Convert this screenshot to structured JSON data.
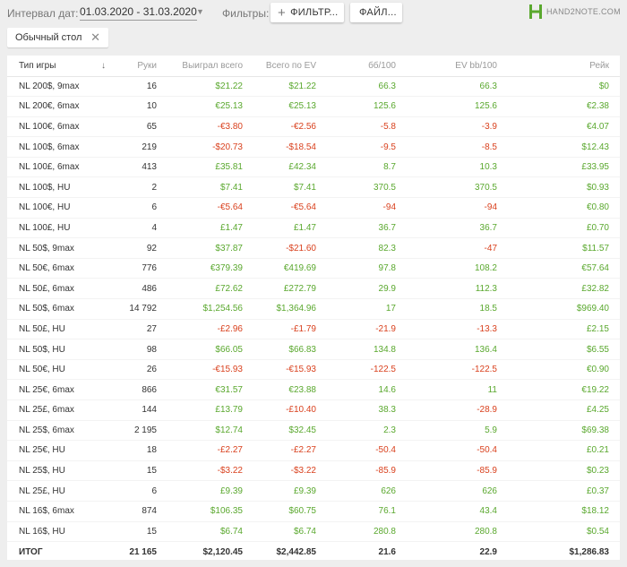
{
  "toolbar": {
    "interval_label": "Интервал дат:",
    "date_range": "01.03.2020 - 31.03.2020",
    "filters_label": "Фильтры:",
    "filter_button": "ФИЛЬТР...",
    "file_button": "ФАЙЛ...",
    "logo_text": "HAND2NOTE.COM"
  },
  "chip": {
    "label": "Обычный стол"
  },
  "table": {
    "headers": {
      "game_type": "Тип игры",
      "hands": "Руки",
      "won": "Выиграл всего",
      "ev": "Всего по EV",
      "bb100": "бб/100",
      "ev_bb100": "EV bb/100",
      "rake": "Рейк"
    },
    "rows": [
      {
        "game": "NL 200$, 9max",
        "hands": "16",
        "won": "$21.22",
        "ev": "$21.22",
        "bb": "66.3",
        "evbb": "66.3",
        "rake": "$0"
      },
      {
        "game": "NL 200€, 6max",
        "hands": "10",
        "won": "€25.13",
        "ev": "€25.13",
        "bb": "125.6",
        "evbb": "125.6",
        "rake": "€2.38"
      },
      {
        "game": "NL 100€, 6max",
        "hands": "65",
        "won": "-€3.80",
        "ev": "-€2.56",
        "bb": "-5.8",
        "evbb": "-3.9",
        "rake": "€4.07"
      },
      {
        "game": "NL 100$, 6max",
        "hands": "219",
        "won": "-$20.73",
        "ev": "-$18.54",
        "bb": "-9.5",
        "evbb": "-8.5",
        "rake": "$12.43"
      },
      {
        "game": "NL 100£, 6max",
        "hands": "413",
        "won": "£35.81",
        "ev": "£42.34",
        "bb": "8.7",
        "evbb": "10.3",
        "rake": "£33.95"
      },
      {
        "game": "NL 100$, HU",
        "hands": "2",
        "won": "$7.41",
        "ev": "$7.41",
        "bb": "370.5",
        "evbb": "370.5",
        "rake": "$0.93"
      },
      {
        "game": "NL 100€, HU",
        "hands": "6",
        "won": "-€5.64",
        "ev": "-€5.64",
        "bb": "-94",
        "evbb": "-94",
        "rake": "€0.80"
      },
      {
        "game": "NL 100£, HU",
        "hands": "4",
        "won": "£1.47",
        "ev": "£1.47",
        "bb": "36.7",
        "evbb": "36.7",
        "rake": "£0.70"
      },
      {
        "game": "NL 50$, 9max",
        "hands": "92",
        "won": "$37.87",
        "ev": "-$21.60",
        "bb": "82.3",
        "evbb": "-47",
        "rake": "$11.57"
      },
      {
        "game": "NL 50€, 6max",
        "hands": "776",
        "won": "€379.39",
        "ev": "€419.69",
        "bb": "97.8",
        "evbb": "108.2",
        "rake": "€57.64"
      },
      {
        "game": "NL 50£, 6max",
        "hands": "486",
        "won": "£72.62",
        "ev": "£272.79",
        "bb": "29.9",
        "evbb": "112.3",
        "rake": "£32.82"
      },
      {
        "game": "NL 50$, 6max",
        "hands": "14 792",
        "won": "$1,254.56",
        "ev": "$1,364.96",
        "bb": "17",
        "evbb": "18.5",
        "rake": "$969.40"
      },
      {
        "game": "NL 50£, HU",
        "hands": "27",
        "won": "-£2.96",
        "ev": "-£1.79",
        "bb": "-21.9",
        "evbb": "-13.3",
        "rake": "£2.15"
      },
      {
        "game": "NL 50$, HU",
        "hands": "98",
        "won": "$66.05",
        "ev": "$66.83",
        "bb": "134.8",
        "evbb": "136.4",
        "rake": "$6.55"
      },
      {
        "game": "NL 50€, HU",
        "hands": "26",
        "won": "-€15.93",
        "ev": "-€15.93",
        "bb": "-122.5",
        "evbb": "-122.5",
        "rake": "€0.90"
      },
      {
        "game": "NL 25€, 6max",
        "hands": "866",
        "won": "€31.57",
        "ev": "€23.88",
        "bb": "14.6",
        "evbb": "11",
        "rake": "€19.22"
      },
      {
        "game": "NL 25£, 6max",
        "hands": "144",
        "won": "£13.79",
        "ev": "-£10.40",
        "bb": "38.3",
        "evbb": "-28.9",
        "rake": "£4.25"
      },
      {
        "game": "NL 25$, 6max",
        "hands": "2 195",
        "won": "$12.74",
        "ev": "$32.45",
        "bb": "2.3",
        "evbb": "5.9",
        "rake": "$69.38"
      },
      {
        "game": "NL 25€, HU",
        "hands": "18",
        "won": "-£2.27",
        "ev": "-£2.27",
        "bb": "-50.4",
        "evbb": "-50.4",
        "rake": "£0.21"
      },
      {
        "game": "NL 25$, HU",
        "hands": "15",
        "won": "-$3.22",
        "ev": "-$3.22",
        "bb": "-85.9",
        "evbb": "-85.9",
        "rake": "$0.23"
      },
      {
        "game": "NL 25£, HU",
        "hands": "6",
        "won": "£9.39",
        "ev": "£9.39",
        "bb": "626",
        "evbb": "626",
        "rake": "£0.37"
      },
      {
        "game": "NL 16$, 6max",
        "hands": "874",
        "won": "$106.35",
        "ev": "$60.75",
        "bb": "76.1",
        "evbb": "43.4",
        "rake": "$18.12"
      },
      {
        "game": "NL 16$, HU",
        "hands": "15",
        "won": "$6.74",
        "ev": "$6.74",
        "bb": "280.8",
        "evbb": "280.8",
        "rake": "$0.54"
      }
    ],
    "total": {
      "game": "ИТОГ",
      "hands": "21 165",
      "won": "$2,120.45",
      "ev": "$2,442.85",
      "bb": "21.6",
      "evbb": "22.9",
      "rake": "$1,286.83"
    }
  },
  "colors": {
    "positive": "#5aa82e",
    "negative": "#d9411e",
    "logo": "#5aa82e"
  },
  "icons": {
    "sort": "arrow-down-icon",
    "close": "close-icon",
    "caret": "caret-down-icon",
    "plus": "plus-icon"
  }
}
